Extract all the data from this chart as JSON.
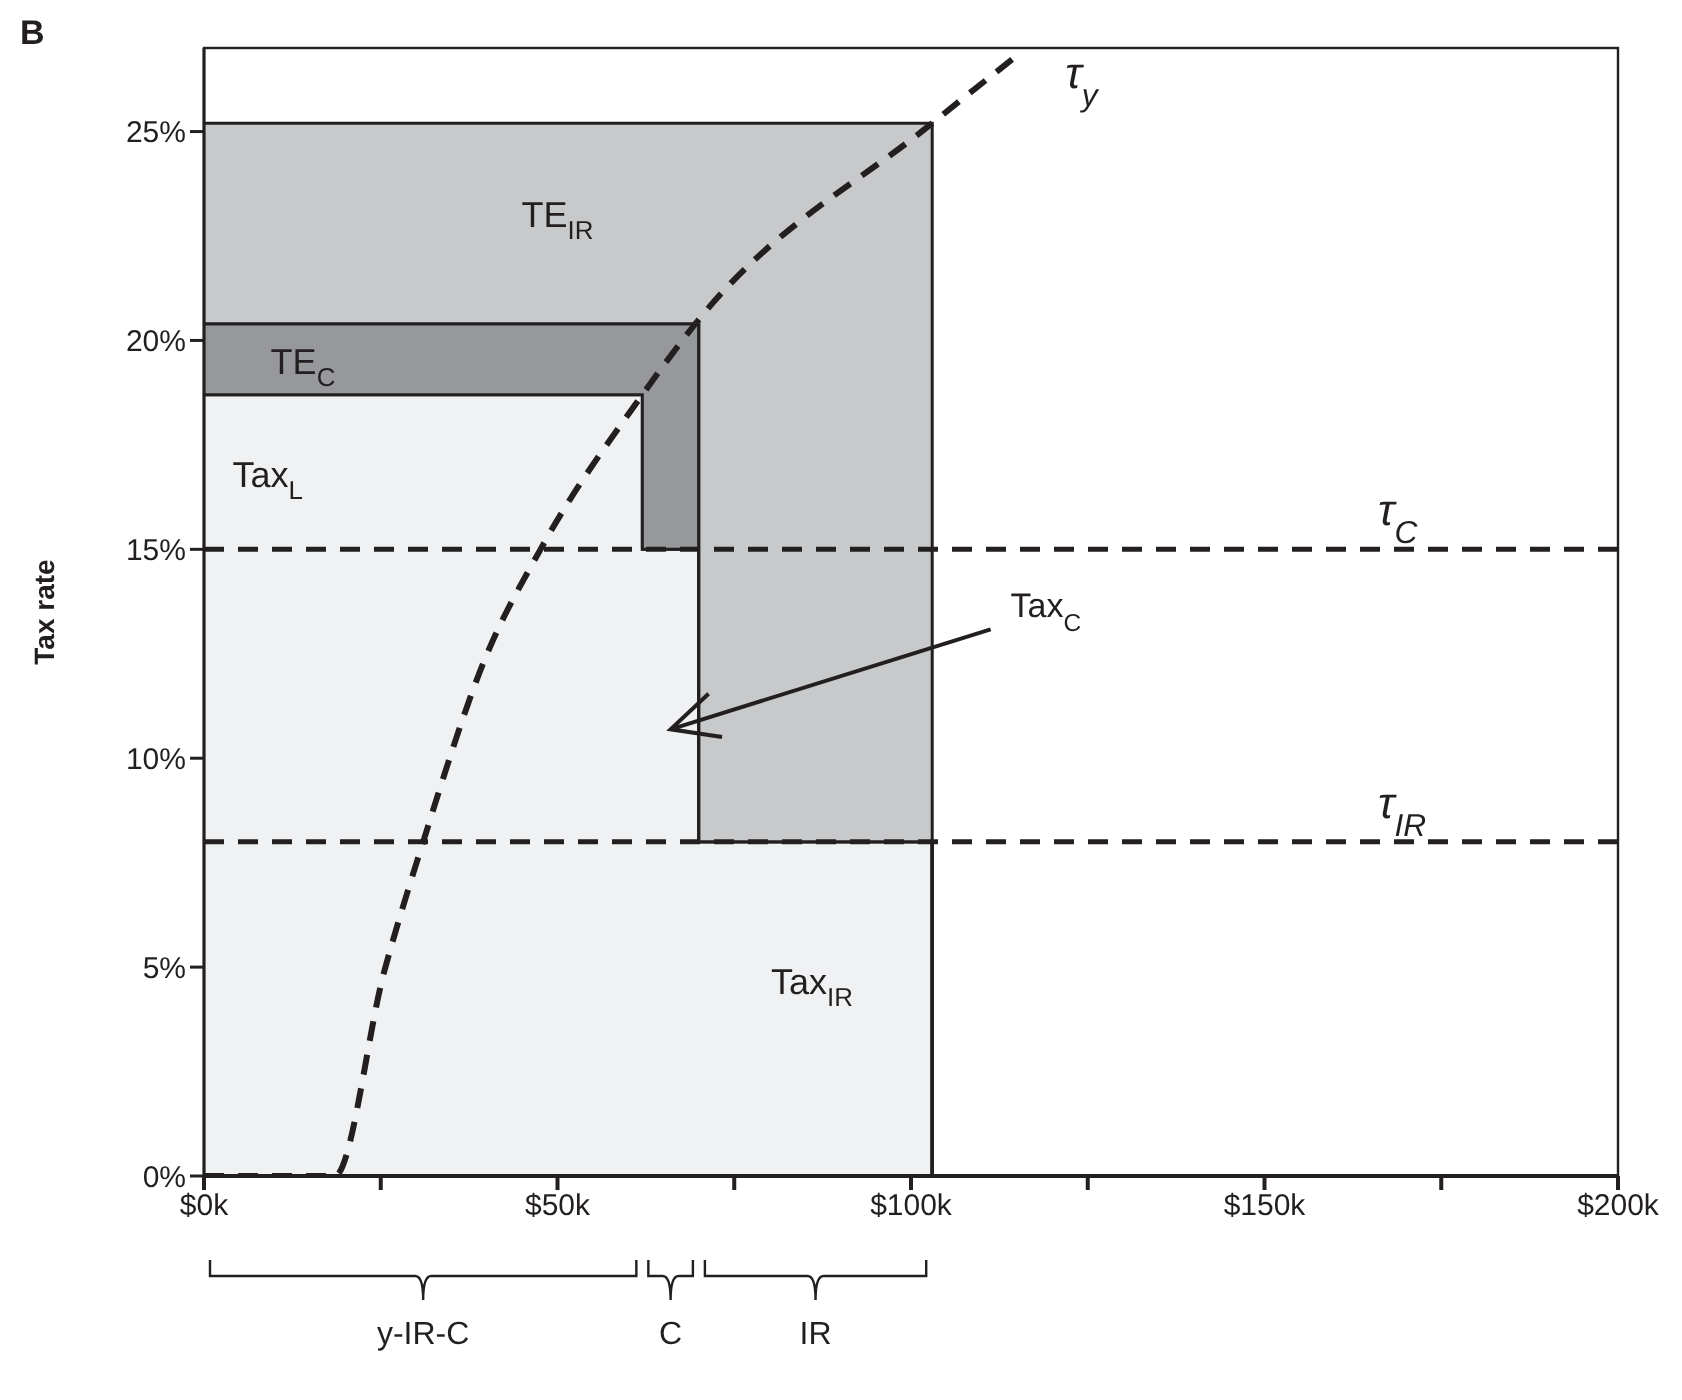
{
  "chart_data": {
    "type": "area",
    "ylabel": "Tax rate",
    "stacked": true,
    "xlim": [
      0,
      200
    ],
    "ylim": [
      0,
      27
    ],
    "xticks": [
      {
        "value": 0,
        "label": "$0k"
      },
      {
        "value": 25,
        "label": null
      },
      {
        "value": 50,
        "label": "$50k"
      },
      {
        "value": 75,
        "label": null
      },
      {
        "value": 100,
        "label": "$100k"
      },
      {
        "value": 125,
        "label": null
      },
      {
        "value": 150,
        "label": "$150k"
      },
      {
        "value": 175,
        "label": null
      },
      {
        "value": 200,
        "label": "$200k"
      }
    ],
    "yticks": [
      {
        "value": 0,
        "label": "0%"
      },
      {
        "value": 5,
        "label": "5%"
      },
      {
        "value": 10,
        "label": "10%"
      },
      {
        "value": 15,
        "label": "15%"
      },
      {
        "value": 20,
        "label": "20%"
      },
      {
        "value": 25,
        "label": "25%"
      }
    ],
    "marker": "none",
    "series": [
      {
        "color": "#f0f1f3",
        "x": [
          0,
          62,
          70,
          103
        ],
        "values": [
          18.7,
          15,
          8,
          0
        ]
      },
      {
        "color": "#97989b",
        "x": [
          0,
          62,
          70,
          103
        ],
        "values": [
          1.7,
          5.4,
          0,
          0
        ]
      },
      {
        "color": "#c8c9cb",
        "x": [
          0,
          62,
          70,
          103
        ],
        "values": [
          4.8,
          4.8,
          17.2,
          0
        ]
      },
      {
        "type": "line",
        "name": "τ$_{y}$",
        "color": "#231f20",
        "line_style": "dashed",
        "x": [
          0,
          18.5,
          25.5,
          31,
          39.8,
          47.6,
          62,
          69.5,
          103,
          115.6
        ],
        "values": [
          0,
          0,
          4.9,
          8,
          12.4,
          15,
          18.7,
          20.4,
          25.2,
          26.9
        ]
      }
    ],
    "ref_lines": [
      {
        "axis": "y",
        "value": 15,
        "label": "τ$_{C}$",
        "color": "#231f20",
        "line_style": "dashed"
      },
      {
        "axis": "y",
        "value": 8,
        "label": "τ$_{IR}$",
        "color": "#231f20",
        "line_style": "dashed"
      }
    ],
    "annotations": [
      "B",
      "TE$_{IR}$",
      "TE$_{C}$",
      "Tax$_{L}$",
      "Tax$_{IR}$",
      "Tax$_{C}$",
      "y-IR-C",
      "C",
      "IR"
    ]
  }
}
